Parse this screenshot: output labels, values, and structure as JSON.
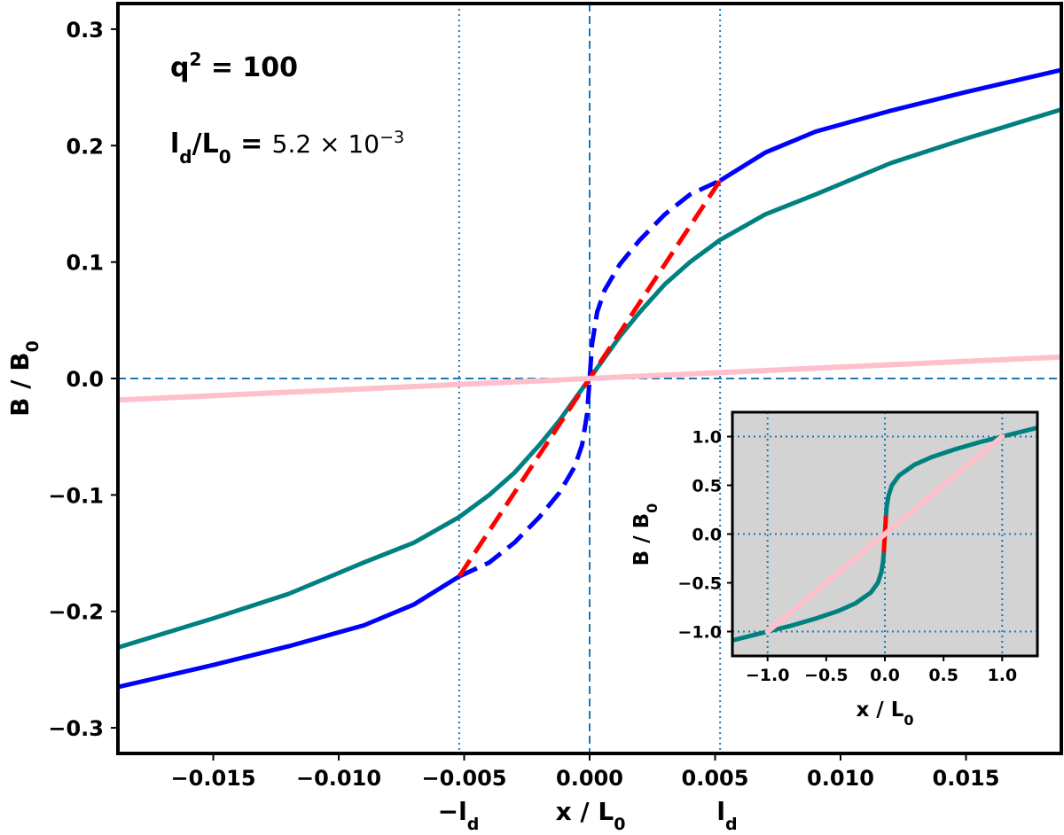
{
  "chart_data": [
    {
      "type": "line",
      "xlim": [
        -0.0188,
        0.0188
      ],
      "ylim": [
        -0.322,
        0.322
      ],
      "xlabel": "x / L",
      "xlabel_sub": "0",
      "ylabel": "B / B",
      "ylabel_sub": "0",
      "x_ticks": [
        -0.015,
        -0.01,
        -0.005,
        0.0,
        0.005,
        0.01,
        0.015
      ],
      "x_tick_labels": [
        "−0.015",
        "−0.010",
        "−0.005",
        "0.000",
        "0.005",
        "0.010",
        "0.015"
      ],
      "y_ticks": [
        -0.3,
        -0.2,
        -0.1,
        0.0,
        0.1,
        0.2,
        0.3
      ],
      "y_tick_labels": [
        "−0.3",
        "−0.2",
        "−0.1",
        "0.0",
        "0.1",
        "0.2",
        "0.3"
      ],
      "extra_x_labels": {
        "neg_ld": {
          "x": -0.0052,
          "main": "−l",
          "sub": "d"
        },
        "pos_ld": {
          "x": 0.0052,
          "main": "l",
          "sub": "d"
        }
      },
      "annotations": {
        "q2": {
          "main": "q",
          "sup": "2",
          "rest": " = 100"
        },
        "ld_ratio": {
          "l": "l",
          "d": "d",
          "slash": "/L",
          "zero": "0",
          "eq": " = ",
          "mant": "5.2 × 10",
          "exp": "−3"
        }
      },
      "colors": {
        "blue": "#0000ff",
        "teal": "#008080",
        "red": "#ff0000",
        "pink": "#ffc0cb",
        "ref": "#1f77b4"
      },
      "ref_lines": {
        "vertical_dotted_x": [
          -0.0052,
          0.0052
        ],
        "vertical_dashed_x": [
          0.0
        ],
        "horizontal_dashed_y": [
          0.0
        ]
      },
      "series": [
        {
          "style": "teal-solid",
          "x": [
            -0.0188,
            -0.015,
            -0.012,
            -0.009,
            -0.007,
            -0.0052,
            -0.004,
            -0.003,
            -0.002,
            -0.0012,
            -0.0006,
            0.0,
            0.0006,
            0.0012,
            0.002,
            0.003,
            0.004,
            0.0052,
            0.007,
            0.009,
            0.012,
            0.015,
            0.0188
          ],
          "y": [
            -0.231,
            -0.206,
            -0.185,
            -0.158,
            -0.141,
            -0.119,
            -0.1,
            -0.081,
            -0.057,
            -0.036,
            -0.018,
            0.0,
            0.018,
            0.036,
            0.057,
            0.081,
            0.1,
            0.119,
            0.141,
            0.158,
            0.185,
            0.206,
            0.231
          ]
        },
        {
          "style": "blue-solid",
          "x": [
            -0.0188,
            -0.015,
            -0.012,
            -0.009,
            -0.007,
            -0.0052
          ],
          "y": [
            -0.265,
            -0.246,
            -0.23,
            -0.212,
            -0.194,
            -0.17
          ]
        },
        {
          "style": "blue-solid",
          "x": [
            0.0052,
            0.007,
            0.009,
            0.012,
            0.015,
            0.0188
          ],
          "y": [
            0.17,
            0.194,
            0.212,
            0.23,
            0.246,
            0.265
          ]
        },
        {
          "style": "blue-dashed",
          "x": [
            -0.0052,
            -0.004,
            -0.003,
            -0.002,
            -0.0012,
            -0.0006,
            -0.0003,
            -0.0001,
            0.0,
            0.0001,
            0.0003,
            0.0006,
            0.0012,
            0.002,
            0.003,
            0.004,
            0.0052
          ],
          "y": [
            -0.17,
            -0.158,
            -0.141,
            -0.119,
            -0.098,
            -0.076,
            -0.057,
            -0.03,
            0.0,
            0.03,
            0.057,
            0.076,
            0.098,
            0.119,
            0.141,
            0.158,
            0.17
          ]
        },
        {
          "style": "red-dashed",
          "x": [
            -0.0052,
            0.0052
          ],
          "y": [
            -0.17,
            0.17
          ]
        },
        {
          "style": "pink-solid",
          "x": [
            -0.0188,
            0.0188
          ],
          "y": [
            -0.0185,
            0.0185
          ]
        }
      ]
    },
    {
      "type": "line",
      "inset": true,
      "background": "#d3d3d3",
      "xlim": [
        -1.3,
        1.3
      ],
      "ylim": [
        -1.25,
        1.25
      ],
      "xlabel": "x / L",
      "xlabel_sub": "0",
      "ylabel": "B / B",
      "ylabel_sub": "0",
      "x_ticks": [
        -1.0,
        -0.5,
        0.0,
        0.5,
        1.0
      ],
      "x_tick_labels": [
        "−1.0",
        "−0.5",
        "0.0",
        "0.5",
        "1.0"
      ],
      "y_ticks": [
        -1.0,
        -0.5,
        0.0,
        0.5,
        1.0
      ],
      "y_tick_labels": [
        "−1.0",
        "−0.5",
        "0.0",
        "0.5",
        "1.0"
      ],
      "grid_x": [
        -1.0,
        0.0,
        1.0
      ],
      "grid_y": [
        -1.0,
        0.0,
        1.0
      ],
      "series": [
        {
          "style": "teal-solid",
          "x": [
            -1.3,
            -1.1,
            -1.0,
            -0.8,
            -0.6,
            -0.4,
            -0.25,
            -0.12,
            -0.06,
            -0.03,
            -0.015,
            -0.008
          ],
          "y": [
            -1.09,
            -1.03,
            -1.0,
            -0.94,
            -0.87,
            -0.79,
            -0.71,
            -0.6,
            -0.5,
            -0.39,
            -0.28,
            -0.17
          ]
        },
        {
          "style": "teal-solid",
          "x": [
            0.008,
            0.015,
            0.03,
            0.06,
            0.12,
            0.25,
            0.4,
            0.6,
            0.8,
            1.0,
            1.1,
            1.3
          ],
          "y": [
            0.17,
            0.28,
            0.39,
            0.5,
            0.6,
            0.71,
            0.79,
            0.87,
            0.94,
            1.0,
            1.03,
            1.09
          ]
        },
        {
          "style": "red-solid",
          "x": [
            -0.008,
            0.008
          ],
          "y": [
            -0.17,
            0.17
          ]
        },
        {
          "style": "pink-solid",
          "x": [
            -1.0,
            1.0
          ],
          "y": [
            -1.0,
            1.0
          ]
        }
      ]
    }
  ]
}
